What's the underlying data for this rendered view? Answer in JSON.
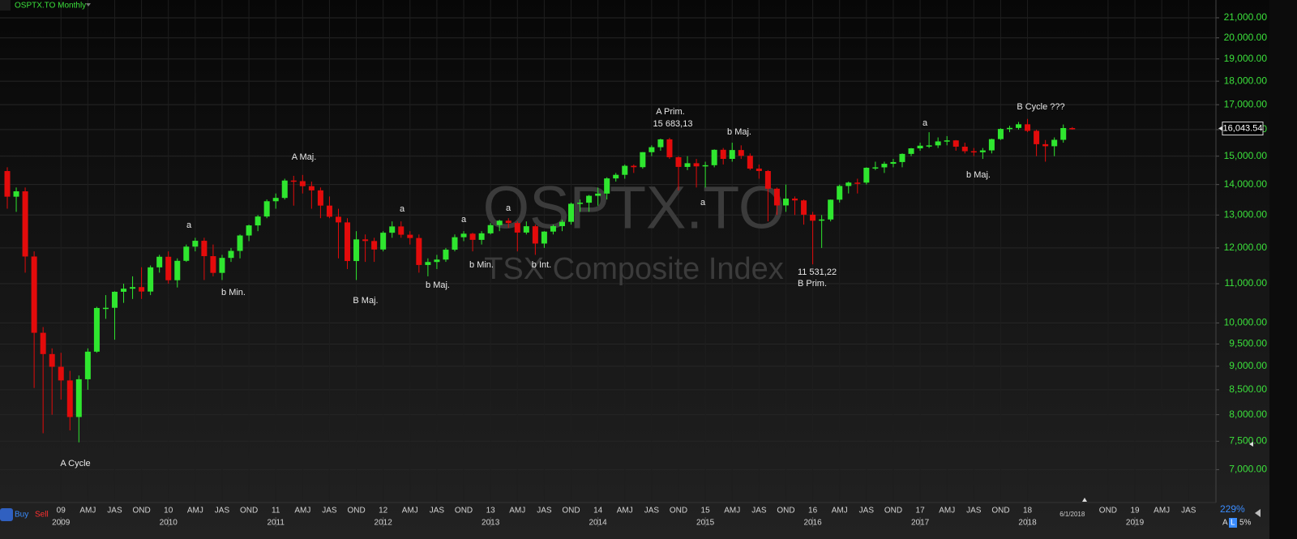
{
  "chart_data": {
    "type": "candlestick",
    "title": "OSPTX.TO Monthly",
    "watermark": "OSPTX.TO",
    "subtitle": "TSX Composite Index",
    "x": [
      "2008-07",
      "2008-08",
      "2008-09",
      "2008-10",
      "2008-11",
      "2008-12",
      "2009-01",
      "2009-02",
      "2009-03",
      "2009-04",
      "2009-05",
      "2009-06",
      "2009-07",
      "2009-08",
      "2009-09",
      "2009-10",
      "2009-11",
      "2009-12",
      "2010-01",
      "2010-02",
      "2010-03",
      "2010-04",
      "2010-05",
      "2010-06",
      "2010-07",
      "2010-08",
      "2010-09",
      "2010-10",
      "2010-11",
      "2010-12",
      "2011-01",
      "2011-02",
      "2011-03",
      "2011-04",
      "2011-05",
      "2011-06",
      "2011-07",
      "2011-08",
      "2011-09",
      "2011-10",
      "2011-11",
      "2011-12",
      "2012-01",
      "2012-02",
      "2012-03",
      "2012-04",
      "2012-05",
      "2012-06",
      "2012-07",
      "2012-08",
      "2012-09",
      "2012-10",
      "2012-11",
      "2012-12",
      "2013-01",
      "2013-02",
      "2013-03",
      "2013-04",
      "2013-05",
      "2013-06",
      "2013-07",
      "2013-08",
      "2013-09",
      "2013-10",
      "2013-11",
      "2013-12",
      "2014-01",
      "2014-02",
      "2014-03",
      "2014-04",
      "2014-05",
      "2014-06",
      "2014-07",
      "2014-08",
      "2014-09",
      "2014-10",
      "2014-11",
      "2014-12",
      "2015-01",
      "2015-02",
      "2015-03",
      "2015-04",
      "2015-05",
      "2015-06",
      "2015-07",
      "2015-08",
      "2015-09",
      "2015-10",
      "2015-11",
      "2015-12",
      "2016-01",
      "2016-02",
      "2016-03",
      "2016-04",
      "2016-05",
      "2016-06",
      "2016-07",
      "2016-08",
      "2016-09",
      "2016-10",
      "2016-11",
      "2016-12",
      "2017-01",
      "2017-02",
      "2017-03",
      "2017-04",
      "2017-05",
      "2017-06",
      "2017-07",
      "2017-08",
      "2017-09",
      "2017-10",
      "2017-11",
      "2017-12",
      "2018-01",
      "2018-02",
      "2018-03",
      "2018-04",
      "2018-05",
      "2018-06"
    ],
    "open": [
      14467,
      13593,
      13771,
      11753,
      9763,
      9271,
      8988,
      8695,
      7955,
      8720,
      9325,
      10370,
      10375,
      10787,
      10868,
      10910,
      10793,
      11447,
      11746,
      11094,
      11630,
      12038,
      12211,
      11763,
      11294,
      11713,
      11914,
      12369,
      12676,
      12953,
      13443,
      13552,
      14137,
      14116,
      13945,
      13803,
      13301,
      12946,
      12769,
      11624,
      12252,
      12204,
      11955,
      12452,
      12644,
      12392,
      12293,
      11513,
      11597,
      11665,
      11949,
      12317,
      12423,
      12239,
      12434,
      12685,
      12822,
      12750,
      12457,
      12650,
      12129,
      12487,
      12654,
      12787,
      13361,
      13395,
      13622,
      13695,
      14210,
      14335,
      14652,
      14604,
      15146,
      15331,
      15626,
      14961,
      14613,
      14745,
      14632,
      14674,
      15234,
      14902,
      15225,
      15014,
      14553,
      14468,
      13859,
      13307,
      13529,
      13470,
      13010,
      12822,
      12860,
      13494,
      13951,
      14066,
      14065,
      14583,
      14598,
      14725,
      14787,
      15083,
      15288,
      15386,
      15399,
      15548,
      15586,
      15350,
      15182,
      15144,
      15212,
      15635,
      16026,
      16067,
      16209,
      15952,
      15443,
      15367,
      15608,
      16061
    ],
    "high": [
      14600,
      13900,
      13900,
      11900,
      9900,
      9400,
      9300,
      8900,
      8800,
      9400,
      10400,
      10700,
      10800,
      11000,
      11200,
      11450,
      11500,
      11800,
      11900,
      11700,
      12100,
      12300,
      12300,
      12100,
      11800,
      12000,
      12400,
      12700,
      13000,
      13500,
      13700,
      14200,
      14300,
      14330,
      14100,
      13900,
      13600,
      13200,
      12900,
      12500,
      12400,
      12300,
      12500,
      12800,
      12800,
      12500,
      12400,
      11700,
      11800,
      12000,
      12400,
      12500,
      12450,
      12500,
      12750,
      12850,
      12900,
      12800,
      12800,
      12700,
      12500,
      12700,
      12850,
      13400,
      13500,
      13650,
      13900,
      14250,
      14400,
      14700,
      14700,
      15150,
      15400,
      15650,
      15683.13,
      15000,
      15000,
      14900,
      14800,
      15250,
      15300,
      15500,
      15400,
      15100,
      14700,
      14500,
      13900,
      14000,
      13600,
      13500,
      13100,
      13000,
      13500,
      14000,
      14100,
      14200,
      14600,
      14800,
      14800,
      14900,
      15100,
      15300,
      15500,
      15900,
      15700,
      15750,
      15600,
      15500,
      15300,
      15300,
      15650,
      16050,
      16150,
      16300,
      16421,
      16000,
      15600,
      15700,
      16200,
      16100
    ],
    "low": [
      13200,
      13100,
      11300,
      8537,
      7648,
      8000,
      8300,
      7700,
      7480,
      8500,
      9300,
      10100,
      9600,
      10500,
      10600,
      10600,
      10700,
      11300,
      11000,
      10900,
      11600,
      11900,
      11100,
      11200,
      11100,
      11600,
      11700,
      12200,
      12500,
      12900,
      13200,
      13500,
      13300,
      13700,
      13200,
      12900,
      12900,
      11700,
      11400,
      11100,
      11600,
      11600,
      11900,
      12300,
      12300,
      12100,
      11300,
      11200,
      11400,
      11600,
      11900,
      12200,
      11900,
      12100,
      12400,
      12500,
      12600,
      11900,
      12400,
      11800,
      12000,
      12400,
      12500,
      12700,
      13100,
      13100,
      13300,
      13500,
      14100,
      14200,
      14400,
      14550,
      15000,
      15200,
      14900,
      13800,
      14500,
      13900,
      13900,
      14600,
      14700,
      14800,
      14900,
      14500,
      14200,
      12800,
      13000,
      13100,
      13000,
      12700,
      11531.22,
      12000,
      12800,
      13400,
      13700,
      13700,
      14000,
      14500,
      14400,
      14600,
      14600,
      15000,
      15200,
      15300,
      15300,
      15400,
      15200,
      15100,
      15000,
      14900,
      15100,
      15600,
      15900,
      16000,
      15900,
      15000,
      14800,
      15000,
      15500,
      16000
    ],
    "close": [
      13593,
      13771,
      11753,
      9763,
      9271,
      8988,
      8695,
      7955,
      8720,
      9325,
      10370,
      10375,
      10787,
      10868,
      10910,
      10793,
      11447,
      11746,
      11094,
      11630,
      12038,
      12211,
      11763,
      11294,
      11713,
      11914,
      12369,
      12676,
      12953,
      13443,
      13552,
      14137,
      14116,
      13945,
      13803,
      13301,
      12946,
      12769,
      11624,
      12252,
      12204,
      11955,
      12452,
      12644,
      12392,
      12293,
      11513,
      11597,
      11665,
      11949,
      12317,
      12423,
      12239,
      12434,
      12685,
      12822,
      12750,
      12457,
      12650,
      12129,
      12487,
      12654,
      12787,
      13361,
      13395,
      13622,
      13695,
      14210,
      14335,
      14652,
      14604,
      15146,
      15331,
      15626,
      14961,
      14613,
      14745,
      14632,
      14674,
      15234,
      14902,
      15225,
      15014,
      14553,
      14468,
      13859,
      13307,
      13529,
      13470,
      13010,
      12822,
      12860,
      13494,
      13951,
      14066,
      14065,
      14583,
      14598,
      14725,
      14787,
      15083,
      15288,
      15386,
      15399,
      15548,
      15586,
      15350,
      15182,
      15144,
      15212,
      15635,
      16026,
      16067,
      16209,
      15952,
      15443,
      15367,
      15608,
      16061,
      16043.54
    ],
    "up_color": "#2fe62f",
    "down_color": "#e30b0b",
    "log_scale": true,
    "grid": true,
    "ylim": [
      6500,
      21500
    ],
    "yticks": [
      {
        "value": 7000,
        "label": "7,000.00"
      },
      {
        "value": 7500,
        "label": "7,500.00"
      },
      {
        "value": 8000,
        "label": "8,000.00"
      },
      {
        "value": 8500,
        "label": "8,500.00"
      },
      {
        "value": 9000,
        "label": "9,000.00"
      },
      {
        "value": 9500,
        "label": "9,500.00"
      },
      {
        "value": 10000,
        "label": "10,000.00"
      },
      {
        "value": 11000,
        "label": "11,000.00"
      },
      {
        "value": 12000,
        "label": "12,000.00"
      },
      {
        "value": 13000,
        "label": "13,000.00"
      },
      {
        "value": 14000,
        "label": "14,000.00"
      },
      {
        "value": 15000,
        "label": "15,000.00"
      },
      {
        "value": 16000,
        "label": "16,000.00"
      },
      {
        "value": 17000,
        "label": "17,000.00"
      },
      {
        "value": 18000,
        "label": "18,000.00"
      },
      {
        "value": 19000,
        "label": "19,000.00"
      },
      {
        "value": 20000,
        "label": "20,000.00"
      },
      {
        "value": 21000,
        "label": "21,000.00"
      }
    ],
    "xticks": [
      {
        "value": "2009-01",
        "label": "09"
      },
      {
        "value": "2009-04",
        "label": "AMJ"
      },
      {
        "value": "2009-07",
        "label": "JAS"
      },
      {
        "value": "2009-10",
        "label": "OND"
      },
      {
        "value": "2010-01",
        "label": "10"
      },
      {
        "value": "2010-04",
        "label": "AMJ"
      },
      {
        "value": "2010-07",
        "label": "JAS"
      },
      {
        "value": "2010-10",
        "label": "OND"
      },
      {
        "value": "2011-01",
        "label": "11"
      },
      {
        "value": "2011-04",
        "label": "AMJ"
      },
      {
        "value": "2011-07",
        "label": "JAS"
      },
      {
        "value": "2011-10",
        "label": "OND"
      },
      {
        "value": "2012-01",
        "label": "12"
      },
      {
        "value": "2012-04",
        "label": "AMJ"
      },
      {
        "value": "2012-07",
        "label": "JAS"
      },
      {
        "value": "2012-10",
        "label": "OND"
      },
      {
        "value": "2013-01",
        "label": "13"
      },
      {
        "value": "2013-04",
        "label": "AMJ"
      },
      {
        "value": "2013-07",
        "label": "JAS"
      },
      {
        "value": "2013-10",
        "label": "OND"
      },
      {
        "value": "2014-01",
        "label": "14"
      },
      {
        "value": "2014-04",
        "label": "AMJ"
      },
      {
        "value": "2014-07",
        "label": "JAS"
      },
      {
        "value": "2014-10",
        "label": "OND"
      },
      {
        "value": "2015-01",
        "label": "15"
      },
      {
        "value": "2015-04",
        "label": "AMJ"
      },
      {
        "value": "2015-07",
        "label": "JAS"
      },
      {
        "value": "2015-10",
        "label": "OND"
      },
      {
        "value": "2016-01",
        "label": "16"
      },
      {
        "value": "2016-04",
        "label": "AMJ"
      },
      {
        "value": "2016-07",
        "label": "JAS"
      },
      {
        "value": "2016-10",
        "label": "OND"
      },
      {
        "value": "2017-01",
        "label": "17"
      },
      {
        "value": "2017-04",
        "label": "AMJ"
      },
      {
        "value": "2017-07",
        "label": "JAS"
      },
      {
        "value": "2017-10",
        "label": "OND"
      },
      {
        "value": "2018-01",
        "label": "18"
      },
      {
        "value": "2018-10",
        "label": "OND"
      },
      {
        "value": "2019-01",
        "label": "19"
      },
      {
        "value": "2019-04",
        "label": "AMJ"
      },
      {
        "value": "2019-07",
        "label": "JAS"
      }
    ],
    "year_ticks": [
      {
        "value": "2009-01",
        "label": "2009"
      },
      {
        "value": "2010-01",
        "label": "2010"
      },
      {
        "value": "2011-01",
        "label": "2011"
      },
      {
        "value": "2012-01",
        "label": "2012"
      },
      {
        "value": "2013-01",
        "label": "2013"
      },
      {
        "value": "2014-01",
        "label": "2014"
      },
      {
        "value": "2015-01",
        "label": "2015"
      },
      {
        "value": "2016-01",
        "label": "2016"
      },
      {
        "value": "2017-01",
        "label": "2017"
      },
      {
        "value": "2018-01",
        "label": "2018"
      },
      {
        "value": "2019-01",
        "label": "2019"
      }
    ],
    "last_price": {
      "value": 16043.54,
      "label": "16,043.54"
    },
    "date_label": "6/1/2018",
    "annotations": [
      "A Cycle",
      "b Min.",
      "a",
      "A Maj.",
      "B Maj.",
      "a",
      "b Maj.",
      "a",
      "b Min.",
      "a",
      "b Int.",
      "A Prim.",
      "15 683,13",
      "b Maj.",
      "a",
      "11 531,22",
      "B Prim.",
      "a",
      "b Maj.",
      "B Cycle ???"
    ]
  },
  "toolbar": {
    "buy": "Buy",
    "sell": "Sell",
    "zoom": "229%",
    "scale_mode": "A",
    "log_toggle": "L",
    "percent": "5%"
  }
}
